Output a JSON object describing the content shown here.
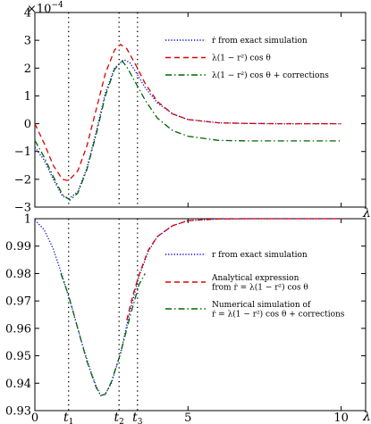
{
  "chart_data": [
    {
      "type": "line",
      "y_multiplier": "×10",
      "y_multiplier_exp": "−4",
      "xlabel": "λt",
      "xlim": [
        0,
        10.8
      ],
      "ylim": [
        -3,
        4
      ],
      "yticks": [
        -3,
        -2,
        -1,
        0,
        1,
        2,
        3,
        4
      ],
      "ytick_labels": [
        "−3",
        "−2",
        "−1",
        "0",
        "1",
        "2",
        "3",
        "4"
      ],
      "grid": false,
      "legend_position": "top-right",
      "series": [
        {
          "name": "ṙ from exact simulation",
          "color": "#0000cc",
          "style": "dotted",
          "points": [
            [
              0,
              -0.85
            ],
            [
              0.3,
              -1.3
            ],
            [
              0.6,
              -2.0
            ],
            [
              0.9,
              -2.6
            ],
            [
              1.1,
              -2.7
            ],
            [
              1.4,
              -2.45
            ],
            [
              1.7,
              -1.6
            ],
            [
              2.0,
              -0.3
            ],
            [
              2.3,
              1.1
            ],
            [
              2.6,
              2.0
            ],
            [
              2.9,
              2.3
            ],
            [
              3.1,
              2.2
            ],
            [
              3.3,
              1.85
            ],
            [
              3.6,
              1.3
            ],
            [
              4.0,
              0.75
            ],
            [
              4.5,
              0.35
            ],
            [
              5.0,
              0.15
            ],
            [
              6,
              0.03
            ],
            [
              7,
              0.01
            ],
            [
              8,
              0
            ],
            [
              10,
              0
            ]
          ]
        },
        {
          "name": "λ(1 − r²) cos θ",
          "color": "#dd0000",
          "style": "dashed",
          "points": [
            [
              0,
              0
            ],
            [
              0.3,
              -0.7
            ],
            [
              0.6,
              -1.5
            ],
            [
              0.9,
              -2.0
            ],
            [
              1.1,
              -2.05
            ],
            [
              1.4,
              -1.7
            ],
            [
              1.7,
              -0.8
            ],
            [
              2.0,
              0.5
            ],
            [
              2.3,
              1.8
            ],
            [
              2.6,
              2.65
            ],
            [
              2.8,
              2.85
            ],
            [
              3.0,
              2.7
            ],
            [
              3.3,
              2.1
            ],
            [
              3.6,
              1.45
            ],
            [
              4.0,
              0.8
            ],
            [
              4.5,
              0.35
            ],
            [
              5.0,
              0.15
            ],
            [
              6,
              0.03
            ],
            [
              7,
              0.01
            ],
            [
              8,
              0
            ],
            [
              10,
              0
            ]
          ]
        },
        {
          "name": "λ(1 − r²) cos θ + corrections",
          "color": "#006600",
          "style": "dash-dot",
          "points": [
            [
              0,
              -0.6
            ],
            [
              0.3,
              -1.2
            ],
            [
              0.6,
              -1.9
            ],
            [
              0.9,
              -2.55
            ],
            [
              1.15,
              -2.75
            ],
            [
              1.4,
              -2.5
            ],
            [
              1.7,
              -1.65
            ],
            [
              2.0,
              -0.4
            ],
            [
              2.3,
              1.0
            ],
            [
              2.6,
              1.95
            ],
            [
              2.85,
              2.25
            ],
            [
              3.0,
              2.05
            ],
            [
              3.3,
              1.45
            ],
            [
              3.6,
              0.85
            ],
            [
              4.0,
              0.2
            ],
            [
              4.5,
              -0.25
            ],
            [
              5.0,
              -0.45
            ],
            [
              6,
              -0.6
            ],
            [
              7,
              -0.62
            ],
            [
              8,
              -0.62
            ],
            [
              10,
              -0.62
            ]
          ]
        }
      ],
      "vlines": [
        1.1,
        2.75,
        3.35
      ]
    },
    {
      "type": "line",
      "xlabel": "λt",
      "xlim": [
        0,
        10.8
      ],
      "ylim": [
        0.93,
        1.0
      ],
      "xticks": [
        0,
        5,
        10
      ],
      "xtick_labels": [
        "0",
        "5",
        "10"
      ],
      "vline_labels": [
        "t1",
        "t2",
        "t3"
      ],
      "yticks": [
        0.93,
        0.94,
        0.95,
        0.96,
        0.97,
        0.98,
        0.99,
        1.0
      ],
      "ytick_labels": [
        "0.93",
        "0.94",
        "0.95",
        "0.96",
        "0.97",
        "0.98",
        "0.99",
        "1"
      ],
      "grid": false,
      "legend_position": "right",
      "series": [
        {
          "name": "r from exact simulation",
          "color": "#0000cc",
          "style": "dotted",
          "points": [
            [
              0,
              0.9995
            ],
            [
              0.3,
              0.996
            ],
            [
              0.6,
              0.989
            ],
            [
              0.9,
              0.979
            ],
            [
              1.2,
              0.968
            ],
            [
              1.5,
              0.956
            ],
            [
              1.8,
              0.945
            ],
            [
              2.0,
              0.939
            ],
            [
              2.15,
              0.9355
            ],
            [
              2.3,
              0.936
            ],
            [
              2.5,
              0.94
            ],
            [
              2.8,
              0.951
            ],
            [
              3.1,
              0.966
            ],
            [
              3.4,
              0.979
            ],
            [
              3.7,
              0.988
            ],
            [
              4.0,
              0.9935
            ],
            [
              4.5,
              0.9975
            ],
            [
              5,
              0.9993
            ],
            [
              6,
              0.9999
            ],
            [
              7,
              1.0
            ],
            [
              10,
              1.0
            ]
          ]
        },
        {
          "name": "Analytical expression from ṙ = λ(1 − r²) cos θ",
          "color": "#dd0000",
          "style": "dashed",
          "points": [
            [
              3.0,
              0.963
            ],
            [
              3.2,
              0.972
            ],
            [
              3.4,
              0.9795
            ],
            [
              3.7,
              0.9885
            ],
            [
              4.0,
              0.9935
            ],
            [
              4.5,
              0.9975
            ],
            [
              5,
              0.9993
            ],
            [
              6,
              0.9999
            ],
            [
              7,
              1.0
            ],
            [
              10,
              1.0
            ]
          ]
        },
        {
          "name": "Numerical simulation of ṙ = λ(1 − r²) cos θ + corrections",
          "color": "#006600",
          "style": "dash-dot",
          "points": [
            [
              0.85,
              0.98
            ],
            [
              1.1,
              0.972
            ],
            [
              1.4,
              0.96
            ],
            [
              1.7,
              0.948
            ],
            [
              2.0,
              0.9385
            ],
            [
              2.15,
              0.9355
            ],
            [
              2.3,
              0.936
            ],
            [
              2.5,
              0.9405
            ],
            [
              2.8,
              0.951
            ],
            [
              3.1,
              0.964
            ],
            [
              3.4,
              0.976
            ],
            [
              3.6,
              0.98
            ]
          ]
        }
      ],
      "vlines": [
        1.1,
        2.75,
        3.35
      ]
    }
  ]
}
